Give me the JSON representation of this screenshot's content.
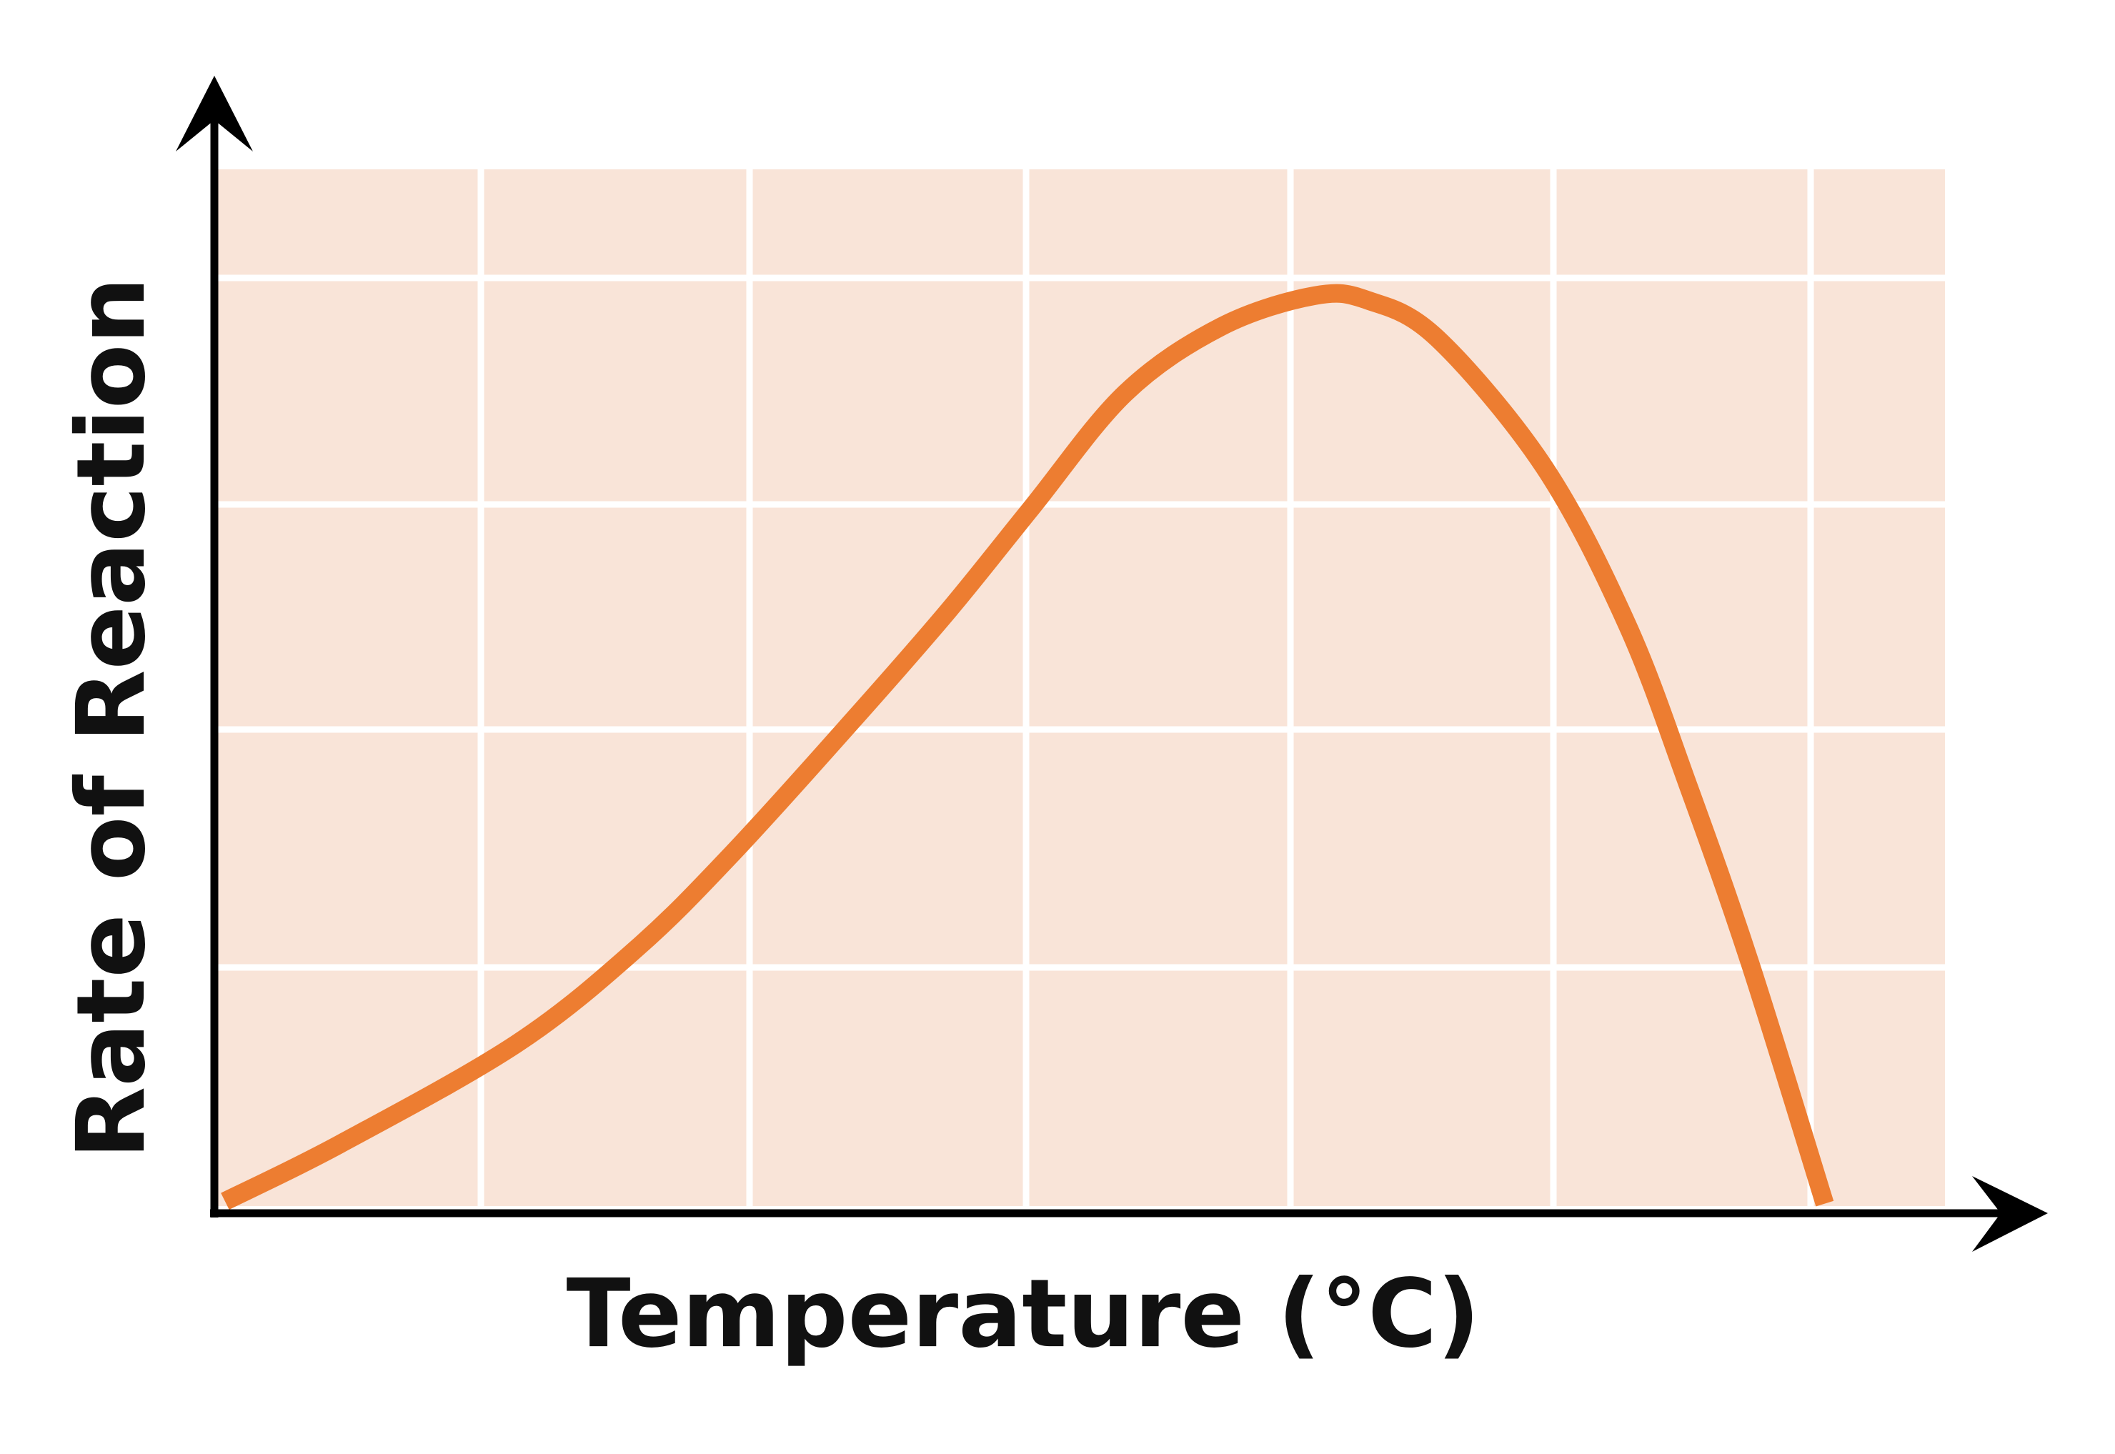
{
  "chart_data": {
    "type": "line",
    "x_label": "Temperature (°C)",
    "y_label": "Rate of Reaction",
    "x": [
      0.04,
      0.47,
      1.13,
      1.58,
      1.94,
      2.4,
      2.75,
      3.06,
      3.41,
      3.77,
      4.12,
      4.32,
      4.58,
      4.98,
      5.29,
      5.52,
      5.75,
      6.03
    ],
    "values": [
      0.02,
      0.26,
      0.68,
      1.08,
      1.48,
      2.05,
      2.5,
      2.93,
      3.41,
      3.69,
      3.82,
      3.8,
      3.64,
      3.1,
      2.44,
      1.76,
      1.02,
      0.01
    ],
    "color": "#ed7d31",
    "xlim": [
      0,
      6.48
    ],
    "ylim": [
      0,
      4.35
    ]
  }
}
